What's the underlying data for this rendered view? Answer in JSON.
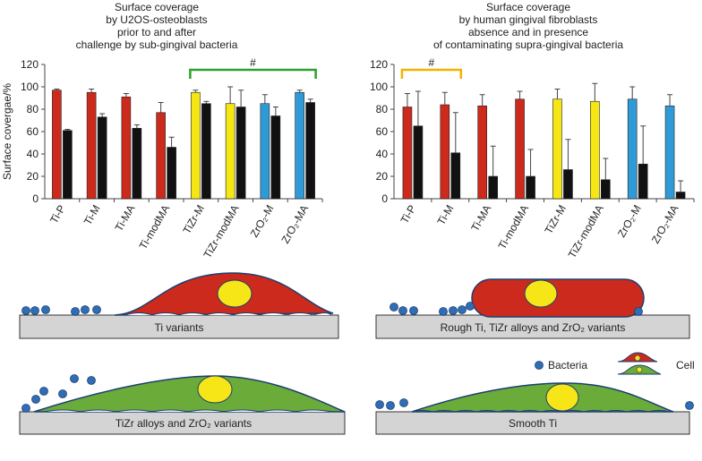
{
  "chart_data": [
    {
      "type": "bar",
      "title": [
        "Surface coverage",
        "by U2OS-osteoblasts",
        "prior to and after",
        "challenge by sub-gingival bacteria"
      ],
      "y_label": "Surface covergae/%",
      "categories": [
        "Ti-P",
        "Ti-M",
        "Ti-MA",
        "Ti-modMA",
        "TiZr-M",
        "TiZr-modMA",
        "ZrO₂-M",
        "ZrO₂-MA"
      ],
      "series": [
        {
          "colors": [
            "#cc2a1c",
            "#cc2a1c",
            "#cc2a1c",
            "#cc2a1c",
            "#f5e614",
            "#f5e614",
            "#2f9ad6",
            "#2f9ad6"
          ],
          "values": [
            97,
            95,
            91,
            77,
            95,
            85,
            85,
            95
          ],
          "errors": [
            1,
            3,
            3,
            9,
            2,
            15,
            8,
            2
          ]
        },
        {
          "color": "#111111",
          "values": [
            61,
            73,
            63,
            46,
            85,
            82,
            74,
            86
          ],
          "errors": [
            1,
            3,
            3,
            9,
            2,
            15,
            8,
            3
          ]
        }
      ],
      "ylim": [
        0,
        120
      ],
      "yticks": [
        0,
        20,
        40,
        60,
        80,
        100,
        120
      ],
      "bracket": {
        "label": "#",
        "from": 4,
        "to": 7,
        "color": "#2ca02c"
      }
    },
    {
      "type": "bar",
      "title": [
        "Surface coverage",
        "by human gingival fibroblasts",
        "absence and in presence",
        "of contaminating supra-gingival bacteria"
      ],
      "categories": [
        "Ti-P",
        "Ti-M",
        "Ti-MA",
        "Ti-modMA",
        "TiZr-M",
        "TiZr-modMA",
        "ZrO₂-M",
        "ZrO₂-MA"
      ],
      "series": [
        {
          "colors": [
            "#cc2a1c",
            "#cc2a1c",
            "#cc2a1c",
            "#cc2a1c",
            "#f5e614",
            "#f5e614",
            "#2f9ad6",
            "#2f9ad6"
          ],
          "values": [
            82,
            84,
            83,
            89,
            89,
            87,
            89,
            83
          ],
          "errors": [
            12,
            11,
            10,
            7,
            9,
            16,
            11,
            10
          ]
        },
        {
          "color": "#111111",
          "values": [
            65,
            41,
            20,
            20,
            26,
            17,
            31,
            6
          ],
          "errors": [
            31,
            36,
            27,
            24,
            27,
            19,
            34,
            10
          ]
        }
      ],
      "ylim": [
        0,
        120
      ],
      "yticks": [
        0,
        20,
        40,
        60,
        80,
        100,
        120
      ],
      "bracket": {
        "label": "#",
        "from": 0,
        "to": 1,
        "color": "#f0b400"
      }
    }
  ],
  "diagram": {
    "panels": [
      "Ti variants",
      "Rough Ti, TiZr alloys and ZrO₂ variants",
      "TiZr alloys and ZrO₂ variants",
      "Smooth Ti"
    ],
    "legend": {
      "bacteria": "Bacteria",
      "cell": "Cell"
    }
  }
}
